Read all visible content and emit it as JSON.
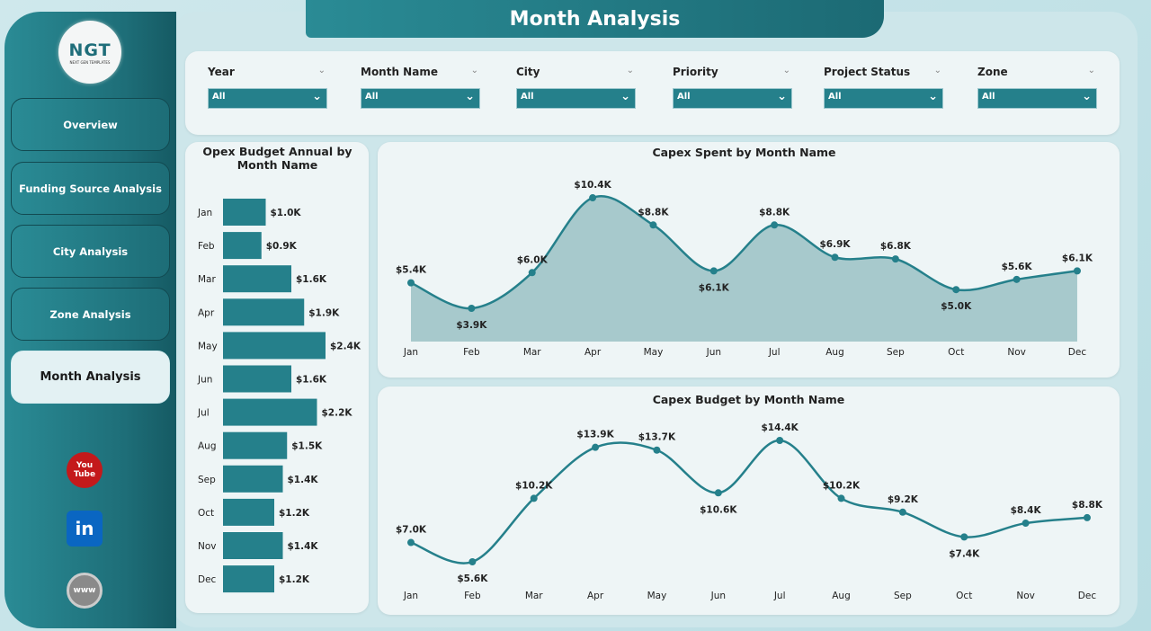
{
  "header": {
    "title": "Month Analysis"
  },
  "logo": {
    "text": "NGT",
    "subtext": "NEXT GEN TEMPLATES"
  },
  "sidebar": {
    "items": [
      {
        "label": "Overview"
      },
      {
        "label": "Funding Source Analysis"
      },
      {
        "label": "City Analysis"
      },
      {
        "label": "Zone Analysis"
      },
      {
        "label": "Month Analysis",
        "active": true
      }
    ],
    "social": [
      {
        "icon": "youtube-icon",
        "label": "You Tube",
        "color": "#c4191b"
      },
      {
        "icon": "linkedin-icon",
        "label": "in",
        "color": "#0a66c2"
      },
      {
        "icon": "globe-icon",
        "label": "www",
        "color": "#8a8a8a"
      }
    ]
  },
  "filters": [
    {
      "label": "Year",
      "value": "All"
    },
    {
      "label": "Month Name",
      "value": "All"
    },
    {
      "label": "City",
      "value": "All"
    },
    {
      "label": "Priority",
      "value": "All"
    },
    {
      "label": "Project Status",
      "value": "All"
    },
    {
      "label": "Zone",
      "value": "All"
    }
  ],
  "colors": {
    "accent": "#25808b",
    "area": "#9fc4c8"
  },
  "chart_data": [
    {
      "type": "bar",
      "orientation": "horizontal",
      "title": "Opex Budget Annual by Month Name",
      "categories": [
        "Jan",
        "Feb",
        "Mar",
        "Apr",
        "May",
        "Jun",
        "Jul",
        "Aug",
        "Sep",
        "Oct",
        "Nov",
        "Dec"
      ],
      "values": [
        1.0,
        0.9,
        1.6,
        1.9,
        2.4,
        1.6,
        2.2,
        1.5,
        1.4,
        1.2,
        1.4,
        1.2
      ],
      "labels": [
        "$1.0K",
        "$0.9K",
        "$1.6K",
        "$1.9K",
        "$2.4K",
        "$1.6K",
        "$2.2K",
        "$1.5K",
        "$1.4K",
        "$1.2K",
        "$1.4K",
        "$1.2K"
      ],
      "unit": "$K"
    },
    {
      "type": "area",
      "title": "Capex Spent by Month Name",
      "categories": [
        "Jan",
        "Feb",
        "Mar",
        "Apr",
        "May",
        "Jun",
        "Jul",
        "Aug",
        "Sep",
        "Oct",
        "Nov",
        "Dec"
      ],
      "values": [
        5.4,
        3.9,
        6.0,
        10.4,
        8.8,
        6.1,
        8.8,
        6.9,
        6.8,
        5.0,
        5.6,
        6.1
      ],
      "labels": [
        "$5.4K",
        "$3.9K",
        "$6.0K",
        "$10.4K",
        "$8.8K",
        "$6.1K",
        "$8.8K",
        "$6.9K",
        "$6.8K",
        "$5.0K",
        "$5.6K",
        "$6.1K"
      ],
      "unit": "$K"
    },
    {
      "type": "line",
      "title": "Capex Budget by Month Name",
      "categories": [
        "Jan",
        "Feb",
        "Mar",
        "Apr",
        "May",
        "Jun",
        "Jul",
        "Aug",
        "Sep",
        "Oct",
        "Nov",
        "Dec"
      ],
      "values": [
        7.0,
        5.6,
        10.2,
        13.9,
        13.7,
        10.6,
        14.4,
        10.2,
        9.2,
        7.4,
        8.4,
        8.8
      ],
      "labels": [
        "$7.0K",
        "$5.6K",
        "$10.2K",
        "$13.9K",
        "$13.7K",
        "$10.6K",
        "$14.4K",
        "$10.2K",
        "$9.2K",
        "$7.4K",
        "$8.4K",
        "$8.8K"
      ],
      "unit": "$K"
    }
  ]
}
